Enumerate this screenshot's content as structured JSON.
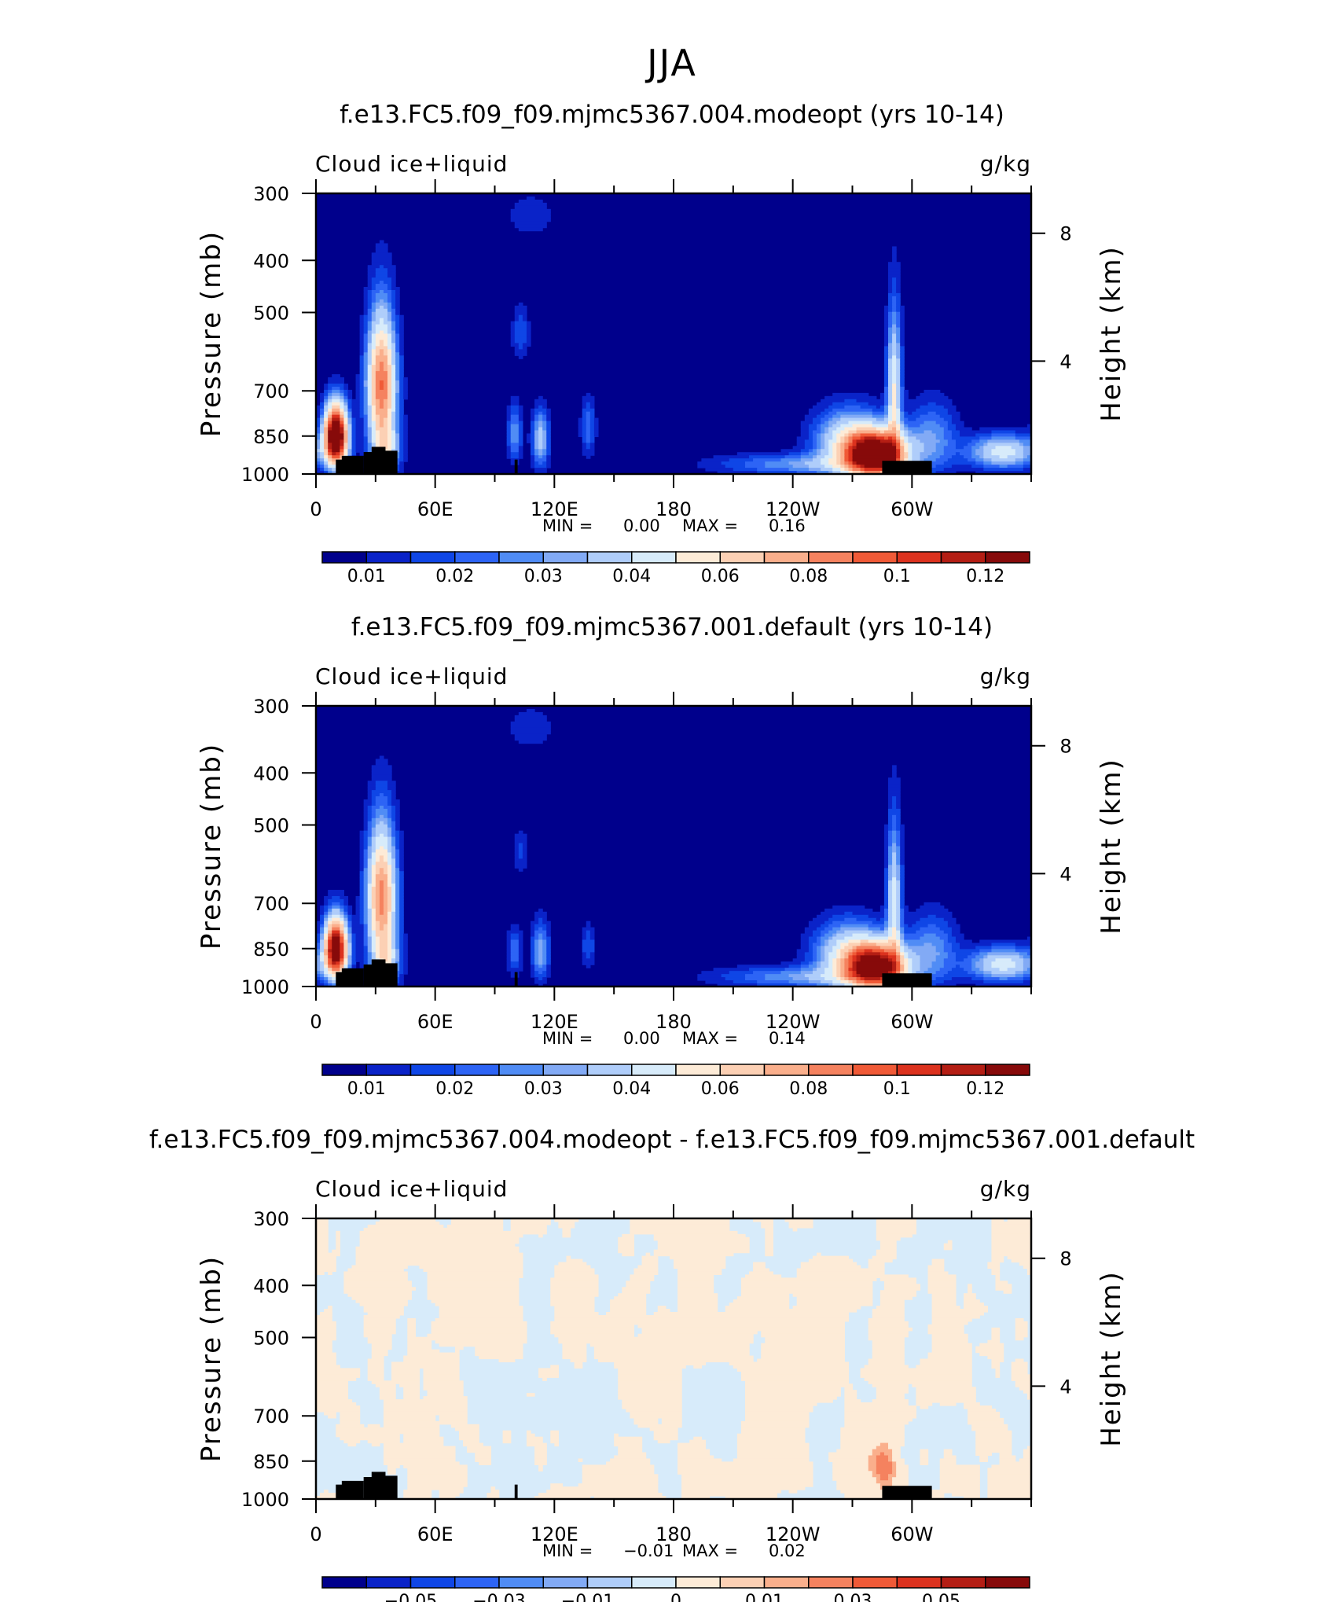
{
  "figure": {
    "main_title": "JJA"
  },
  "chart_data": [
    {
      "type": "heatmap",
      "title": "f.e13.FC5.f09_f09.mjmc5367.004.modeopt (yrs 10-14)",
      "left_label": "Cloud ice+liquid",
      "right_label": "g/kg",
      "ylabel": "Pressure (mb)",
      "y2label": "Height (km)",
      "xticks": [
        "0",
        "60E",
        "120E",
        "180",
        "120W",
        "60W"
      ],
      "yticks": [
        "300",
        "400",
        "500",
        "700",
        "850",
        "1000"
      ],
      "y2ticks": [
        "8",
        "4"
      ],
      "stats": {
        "min_label": "MIN =",
        "min": "0.00",
        "max_label": "MAX =",
        "max": "0.16"
      },
      "colorbar": {
        "colors": [
          "#00008c",
          "#0a23c8",
          "#0f46e6",
          "#2d64f5",
          "#508cf5",
          "#82aaf5",
          "#afcdfa",
          "#d7ebfa",
          "#fdebd7",
          "#fcd0b4",
          "#faaf8c",
          "#f5825f",
          "#f05a37",
          "#dc321e",
          "#b41e14",
          "#870a0a"
        ],
        "labels": [
          "0.01",
          "0.02",
          "0.03",
          "0.04",
          "0.06",
          "0.08",
          "0.1",
          "0.12"
        ]
      },
      "features": [
        {
          "lon": 10,
          "p": 850,
          "sx": 4,
          "sy": 75,
          "amp": 0.16
        },
        {
          "lon": 33,
          "p": 680,
          "sx": 5,
          "sy": 130,
          "amp": 0.09
        },
        {
          "lon": 35,
          "p": 900,
          "sx": 5,
          "sy": 70,
          "amp": 0.04
        },
        {
          "lon": 100,
          "p": 840,
          "sx": 2.5,
          "sy": 70,
          "amp": 0.025
        },
        {
          "lon": 113,
          "p": 860,
          "sx": 3,
          "sy": 75,
          "amp": 0.035
        },
        {
          "lon": 103,
          "p": 545,
          "sx": 3,
          "sy": 45,
          "amp": 0.015
        },
        {
          "lon": 137,
          "p": 820,
          "sx": 2.5,
          "sy": 70,
          "amp": 0.02
        },
        {
          "lon": 108,
          "p": 330,
          "sx": 10,
          "sy": 25,
          "amp": 0.008
        },
        {
          "lon": 282,
          "p": 920,
          "sx": 10,
          "sy": 60,
          "amp": 0.15
        },
        {
          "lon": 268,
          "p": 870,
          "sx": 12,
          "sy": 80,
          "amp": 0.045
        },
        {
          "lon": 291,
          "p": 700,
          "sx": 2.5,
          "sy": 150,
          "amp": 0.05
        },
        {
          "lon": 245,
          "p": 960,
          "sx": 30,
          "sy": 30,
          "amp": 0.025
        },
        {
          "lon": 310,
          "p": 860,
          "sx": 9,
          "sy": 90,
          "amp": 0.025
        },
        {
          "lon": 346,
          "p": 910,
          "sx": 12,
          "sy": 45,
          "amp": 0.045
        }
      ],
      "noise": 0
    },
    {
      "type": "heatmap",
      "title": "f.e13.FC5.f09_f09.mjmc5367.001.default (yrs 10-14)",
      "left_label": "Cloud ice+liquid",
      "right_label": "g/kg",
      "ylabel": "Pressure (mb)",
      "y2label": "Height (km)",
      "xticks": [
        "0",
        "60E",
        "120E",
        "180",
        "120W",
        "60W"
      ],
      "yticks": [
        "300",
        "400",
        "500",
        "700",
        "850",
        "1000"
      ],
      "y2ticks": [
        "8",
        "4"
      ],
      "stats": {
        "min_label": "MIN =",
        "min": "0.00",
        "max_label": "MAX =",
        "max": "0.14"
      },
      "colorbar": {
        "colors": [
          "#00008c",
          "#0a23c8",
          "#0f46e6",
          "#2d64f5",
          "#508cf5",
          "#82aaf5",
          "#afcdfa",
          "#d7ebfa",
          "#fdebd7",
          "#fcd0b4",
          "#faaf8c",
          "#f5825f",
          "#f05a37",
          "#dc321e",
          "#b41e14",
          "#870a0a"
        ],
        "labels": [
          "0.01",
          "0.02",
          "0.03",
          "0.04",
          "0.06",
          "0.08",
          "0.1",
          "0.12"
        ]
      },
      "features": [
        {
          "lon": 10,
          "p": 850,
          "sx": 4,
          "sy": 75,
          "amp": 0.14
        },
        {
          "lon": 33,
          "p": 680,
          "sx": 5,
          "sy": 130,
          "amp": 0.085
        },
        {
          "lon": 35,
          "p": 900,
          "sx": 5,
          "sy": 70,
          "amp": 0.04
        },
        {
          "lon": 100,
          "p": 860,
          "sx": 2.5,
          "sy": 60,
          "amp": 0.02
        },
        {
          "lon": 113,
          "p": 860,
          "sx": 3,
          "sy": 75,
          "amp": 0.03
        },
        {
          "lon": 103,
          "p": 560,
          "sx": 3,
          "sy": 35,
          "amp": 0.012
        },
        {
          "lon": 137,
          "p": 840,
          "sx": 2.5,
          "sy": 55,
          "amp": 0.015
        },
        {
          "lon": 108,
          "p": 330,
          "sx": 10,
          "sy": 25,
          "amp": 0.008
        },
        {
          "lon": 282,
          "p": 920,
          "sx": 10,
          "sy": 60,
          "amp": 0.13
        },
        {
          "lon": 268,
          "p": 870,
          "sx": 12,
          "sy": 80,
          "amp": 0.045
        },
        {
          "lon": 291,
          "p": 700,
          "sx": 2.5,
          "sy": 150,
          "amp": 0.045
        },
        {
          "lon": 245,
          "p": 960,
          "sx": 30,
          "sy": 30,
          "amp": 0.025
        },
        {
          "lon": 310,
          "p": 860,
          "sx": 9,
          "sy": 90,
          "amp": 0.025
        },
        {
          "lon": 346,
          "p": 910,
          "sx": 12,
          "sy": 45,
          "amp": 0.045
        }
      ],
      "noise": 0
    },
    {
      "type": "heatmap",
      "title": "f.e13.FC5.f09_f09.mjmc5367.004.modeopt - f.e13.FC5.f09_f09.mjmc5367.001.default",
      "left_label": "Cloud ice+liquid",
      "right_label": "g/kg",
      "ylabel": "Pressure (mb)",
      "y2label": "Height (km)",
      "xticks": [
        "0",
        "60E",
        "120E",
        "180",
        "120W",
        "60W"
      ],
      "yticks": [
        "300",
        "400",
        "500",
        "700",
        "850",
        "1000"
      ],
      "y2ticks": [
        "8",
        "4"
      ],
      "stats": {
        "min_label": "MIN =",
        "min": "−0.01",
        "max_label": "MAX =",
        "max": "0.02"
      },
      "colorbar": {
        "colors": [
          "#00008c",
          "#0a23c8",
          "#0f46e6",
          "#2d64f5",
          "#508cf5",
          "#82aaf5",
          "#afcdfa",
          "#d7ebfa",
          "#fdebd7",
          "#fcd0b4",
          "#faaf8c",
          "#f5825f",
          "#f05a37",
          "#dc321e",
          "#b41e14",
          "#870a0a"
        ],
        "labels": [
          "−0.05",
          "−0.03",
          "−0.01",
          "0",
          "0.01",
          "0.03",
          "0.05"
        ]
      },
      "features": [
        {
          "lon": 287,
          "p": 880,
          "sx": 3,
          "sy": 60,
          "amp": 0.02
        },
        {
          "lon": 283,
          "p": 860,
          "sx": 4,
          "sy": 45,
          "amp": 0.012
        },
        {
          "lon": 38,
          "p": 800,
          "sx": 1.5,
          "sy": 45,
          "amp": 0.012
        },
        {
          "lon": 113,
          "p": 820,
          "sx": 1.5,
          "sy": 35,
          "amp": 0.01
        }
      ],
      "noise": 1
    }
  ]
}
